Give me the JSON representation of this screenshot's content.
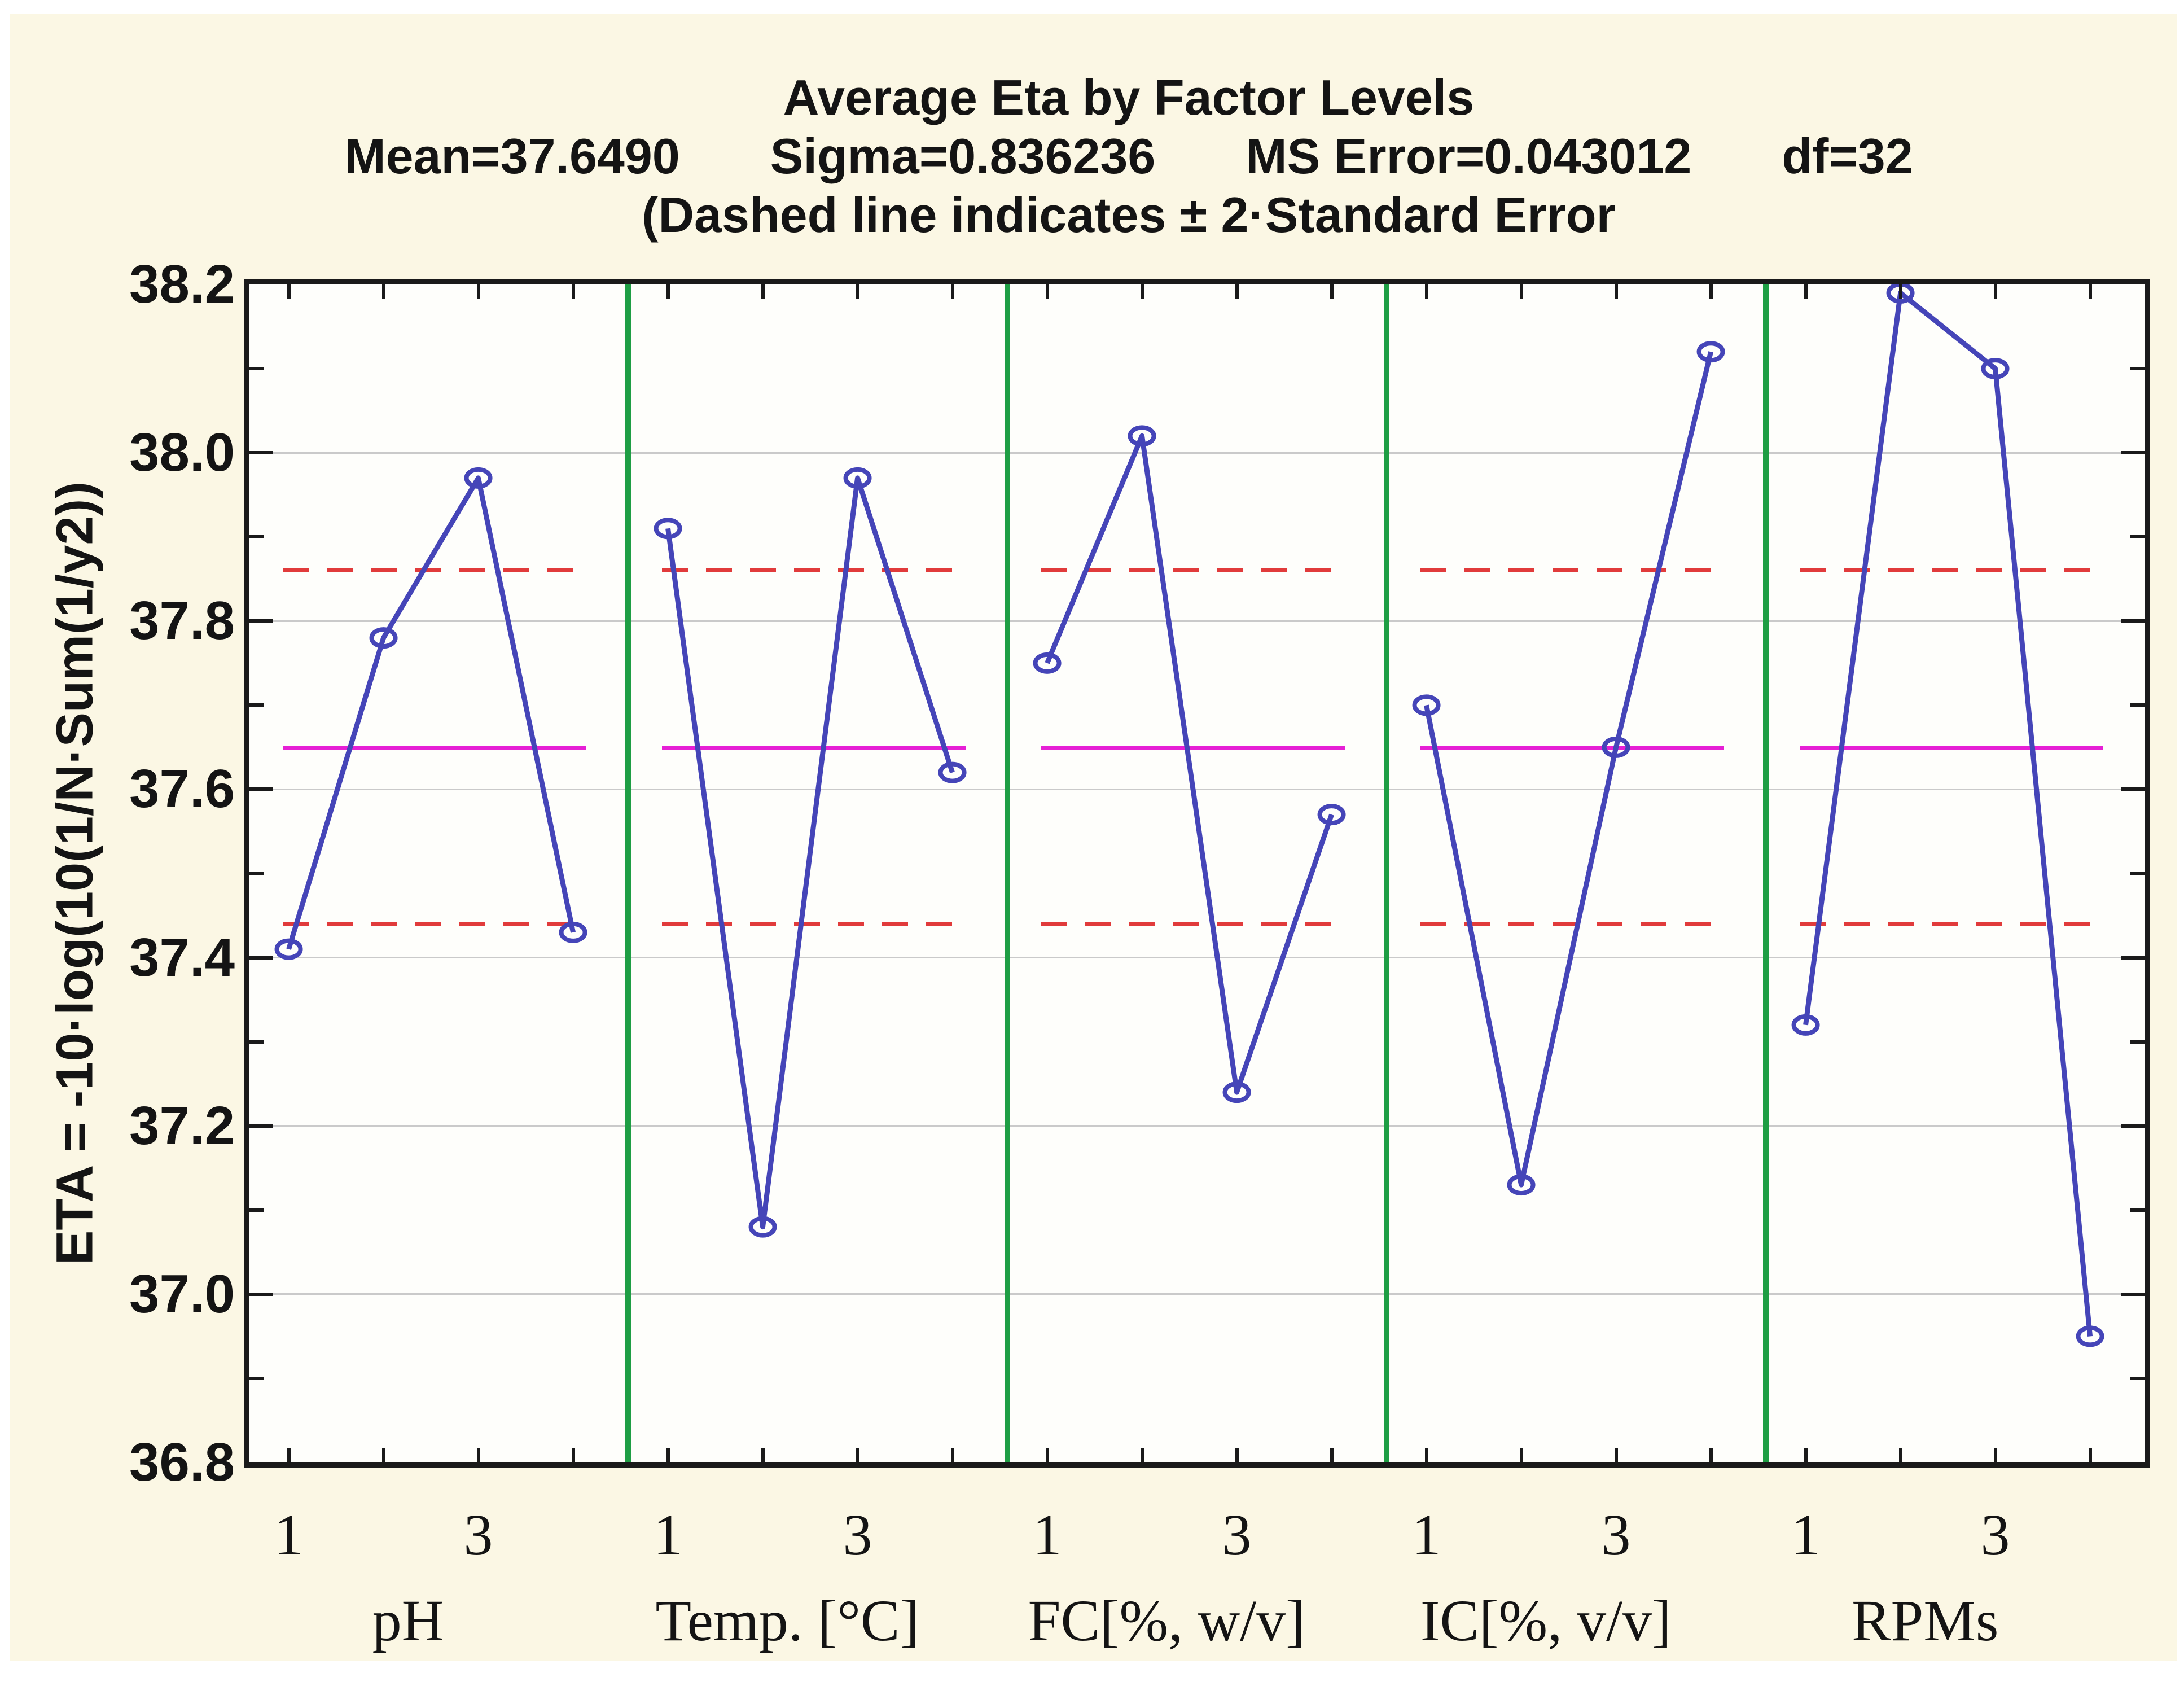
{
  "title": {
    "line1": "Average Eta by Factor Levels",
    "stats": [
      "Mean=37.6490",
      "Sigma=0.836236",
      "MS Error=0.043012",
      "df=32"
    ],
    "note": "(Dashed line indicates  ± 2·Standard Error"
  },
  "y_axis": {
    "label": "ETA = -10·log(10(1/N·Sum(1/y2))",
    "tick_labels": [
      "38.2",
      "38.0",
      "37.8",
      "37.6",
      "37.4",
      "37.2",
      "37.0",
      "36.8"
    ]
  },
  "x_axis": {
    "level_tick_labels": [
      "1",
      "3"
    ],
    "factor_labels": [
      "pH",
      "Temp. [°C]",
      "FC[%, w/v]",
      "IC[%, v/v]",
      "RPMs"
    ]
  },
  "chart_data": {
    "type": "line",
    "subtype": "taguchi-main-effects-plot",
    "title": "Average Eta by Factor Levels",
    "ylabel": "ETA = -10·log(10(1/N·Sum(1/y2))",
    "x_levels": [
      1,
      2,
      3,
      4
    ],
    "labeled_levels": [
      "1",
      "3"
    ],
    "series": [
      {
        "name": "pH",
        "values": [
          37.41,
          37.78,
          37.97,
          37.43
        ]
      },
      {
        "name": "Temp. [°C]",
        "values": [
          37.91,
          37.08,
          37.97,
          37.62
        ]
      },
      {
        "name": "FC[%, w/v]",
        "values": [
          37.75,
          38.02,
          37.24,
          37.57
        ]
      },
      {
        "name": "IC[%, v/v]",
        "values": [
          37.7,
          37.13,
          37.65,
          38.12
        ]
      },
      {
        "name": "RPMs",
        "values": [
          37.32,
          38.19,
          38.1,
          36.95
        ]
      }
    ],
    "mean_line": 37.649,
    "upper_dashed": 37.86,
    "lower_dashed": 37.44,
    "ylim": [
      36.8,
      38.2
    ],
    "grid_step": 0.2,
    "minor_tick_step": 0.1,
    "grid": "horizontal",
    "legend": "none"
  },
  "colors": {
    "background": "#fbf7e4",
    "plot_background": "#fefefb",
    "series_line": "#4545b8",
    "mean_line": "#e620d5",
    "dashed_line": "#e13b3b",
    "separator": "#1e9e44",
    "grid_line": "#cacaca",
    "axis": "#1a1a1a",
    "text": "#141414"
  }
}
